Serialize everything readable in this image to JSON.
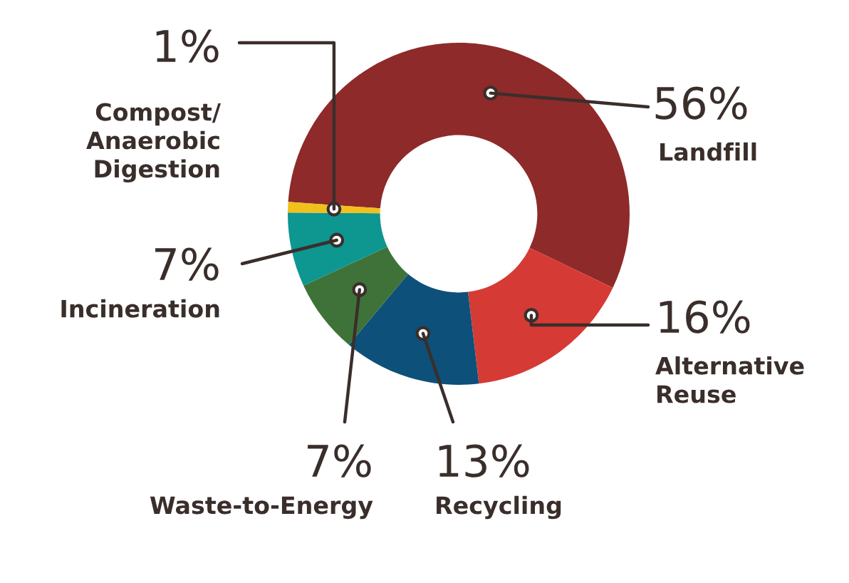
{
  "chart_data": {
    "type": "donut",
    "categories": [
      "Landfill",
      "Alternative\nReuse",
      "Recycling",
      "Waste-to-Energy",
      "Incineration",
      "Compost/\nAnaerobic\nDigestion"
    ],
    "values": [
      56,
      16,
      13,
      7,
      7,
      1
    ],
    "value_labels": [
      "56%",
      "16%",
      "13%",
      "7%",
      "7%",
      "1%"
    ],
    "colors": [
      "#8e2a29",
      "#d63a35",
      "#0d5079",
      "#3f7238",
      "#0e9690",
      "#f2c01b"
    ]
  }
}
